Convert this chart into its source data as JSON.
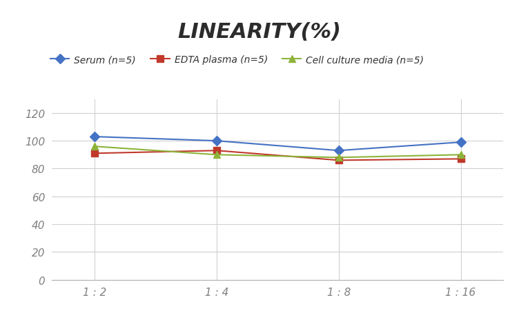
{
  "title": "LINEARITY(%)",
  "x_labels": [
    "1 : 2",
    "1 : 4",
    "1 : 8",
    "1 : 16"
  ],
  "x_positions": [
    0,
    1,
    2,
    3
  ],
  "series": [
    {
      "label": "Serum (n=5)",
      "values": [
        103,
        100,
        93,
        99
      ],
      "color": "#4472C4",
      "marker": "D",
      "markersize": 7
    },
    {
      "label": "EDTA plasma (n=5)",
      "values": [
        91,
        93,
        86,
        87
      ],
      "color": "#C0392B",
      "marker": "s",
      "markersize": 7
    },
    {
      "label": "Cell culture media (n=5)",
      "values": [
        96,
        90,
        88,
        90
      ],
      "color": "#8DB33A",
      "marker": "^",
      "markersize": 7
    }
  ],
  "ylim": [
    0,
    130
  ],
  "yticks": [
    0,
    20,
    40,
    60,
    80,
    100,
    120
  ],
  "background_color": "#ffffff",
  "grid_color": "#d0d0d0",
  "title_fontsize": 22,
  "legend_fontsize": 10,
  "tick_fontsize": 11,
  "tick_color": "#808080"
}
